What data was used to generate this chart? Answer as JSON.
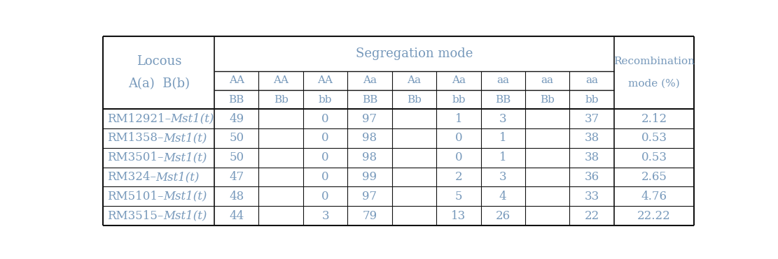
{
  "text_color": "#7799bb",
  "border_color": "#111111",
  "background_color": "#ffffff",
  "figsize": [
    11.11,
    3.71
  ],
  "dpi": 100,
  "col_widths_rel": [
    1.8,
    0.72,
    0.72,
    0.72,
    0.72,
    0.72,
    0.72,
    0.72,
    0.72,
    0.72,
    1.3
  ],
  "header_locous_line1": "Locous",
  "header_locous_line2": "A(a)  B(b)",
  "header_seg": "Segregation mode",
  "header_recom_line1": "Recombination",
  "header_recom_line2": "mode (%)",
  "col_top_labels": [
    "AA",
    "AA",
    "AA",
    "Aa",
    "Aa",
    "Aa",
    "aa",
    "aa",
    "aa"
  ],
  "col_bot_labels": [
    "BB",
    "Bb",
    "bb",
    "BB",
    "Bb",
    "bb",
    "BB",
    "Bb",
    "bb"
  ],
  "rows": [
    {
      "prefix": "RM12921–",
      "suffix": "Mst1(t)",
      "AA_BB": "49",
      "AA_bb": "0",
      "Aa_BB": "97",
      "Aa_bb": "1",
      "aa_BB": "3",
      "aa_bb": "37",
      "recom": "2.12"
    },
    {
      "prefix": "RM1358–",
      "suffix": "Mst1(t)",
      "AA_BB": "50",
      "AA_bb": "0",
      "Aa_BB": "98",
      "Aa_bb": "0",
      "aa_BB": "1",
      "aa_bb": "38",
      "recom": "0.53"
    },
    {
      "prefix": "RM3501–",
      "suffix": "Mst1(t)",
      "AA_BB": "50",
      "AA_bb": "0",
      "Aa_BB": "98",
      "Aa_bb": "0",
      "aa_BB": "1",
      "aa_bb": "38",
      "recom": "0.53"
    },
    {
      "prefix": "RM324–",
      "suffix": "Mst1(t)",
      "AA_BB": "47",
      "AA_bb": "0",
      "Aa_BB": "99",
      "Aa_bb": "2",
      "aa_BB": "3",
      "aa_bb": "36",
      "recom": "2.65"
    },
    {
      "prefix": "RM5101–",
      "suffix": "Mst1(t)",
      "AA_BB": "48",
      "AA_bb": "0",
      "Aa_BB": "97",
      "Aa_bb": "5",
      "aa_BB": "4",
      "aa_bb": "33",
      "recom": "4.76"
    },
    {
      "prefix": "RM3515–",
      "suffix": "Mst1(t)",
      "AA_BB": "44",
      "AA_bb": "3",
      "Aa_BB": "79",
      "Aa_bb": "13",
      "aa_BB": "26",
      "aa_bb": "22",
      "recom": "22.22"
    }
  ],
  "val_keys": [
    "AA_BB",
    "AA_bb",
    "Aa_BB",
    "Aa_bb",
    "aa_BB",
    "aa_bb",
    "recom"
  ],
  "val_cols": [
    1,
    3,
    4,
    6,
    7,
    9,
    10
  ]
}
